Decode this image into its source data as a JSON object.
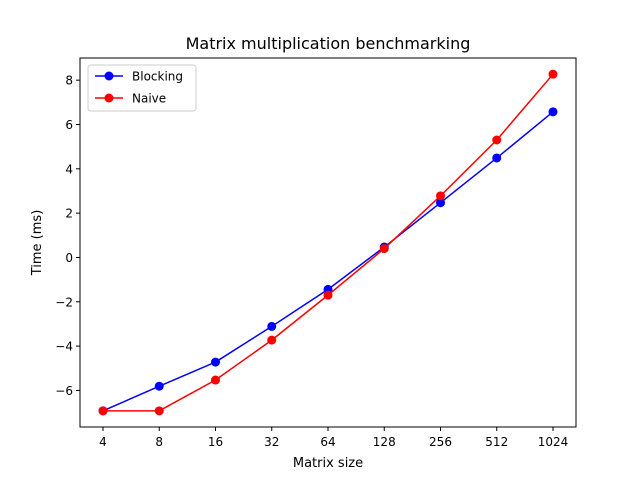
{
  "chart_data": {
    "type": "line",
    "title": "Matrix multiplication benchmarking",
    "xlabel": "Matrix size",
    "ylabel": "Time (ms)",
    "categories": [
      "4",
      "8",
      "16",
      "32",
      "64",
      "128",
      "256",
      "512",
      "1024"
    ],
    "ylim": [
      -7.65,
      9.0
    ],
    "yticks": [
      -6,
      -4,
      -2,
      0,
      2,
      4,
      6,
      8
    ],
    "ytick_labels": [
      "−6",
      "−4",
      "−2",
      "0",
      "2",
      "4",
      "6",
      "8"
    ],
    "grid": false,
    "legend_position": "top-left",
    "series": [
      {
        "name": "Blocking",
        "color": "#0000ff",
        "values": [
          -6.92,
          -5.81,
          -4.72,
          -3.11,
          -1.44,
          0.47,
          2.47,
          4.49,
          6.57
        ]
      },
      {
        "name": "Naive",
        "color": "#ff0000",
        "values": [
          -6.92,
          -6.92,
          -5.53,
          -3.73,
          -1.7,
          0.4,
          2.78,
          5.3,
          8.27
        ]
      }
    ]
  }
}
